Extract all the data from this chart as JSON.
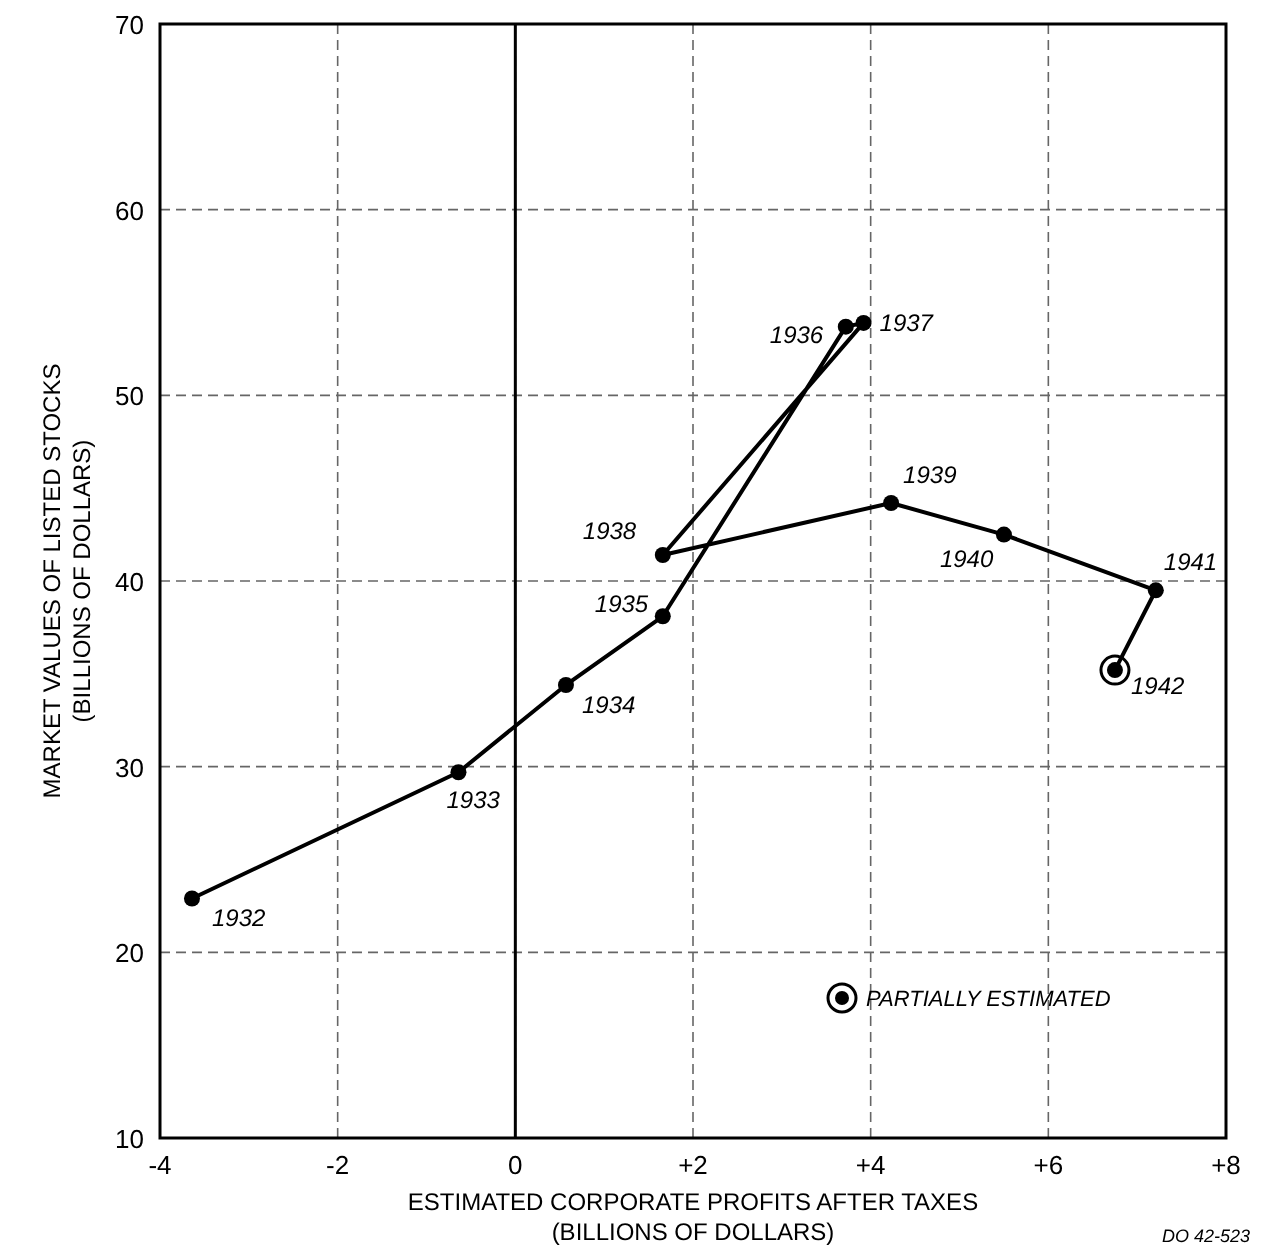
{
  "chart_data": {
    "type": "line",
    "xlabel": "ESTIMATED CORPORATE PROFITS AFTER TAXES\n(BILLIONS OF DOLLARS)",
    "ylabel": "MARKET VALUES OF LISTED STOCKS\n(BILLIONS OF DOLLARS)",
    "xlim": [
      -4,
      8
    ],
    "ylim": [
      10,
      70
    ],
    "xticks": [
      -4,
      -2,
      0,
      {
        "value": 2,
        "label": "+2"
      },
      {
        "value": 4,
        "label": "+4"
      },
      {
        "value": 6,
        "label": "+6"
      },
      {
        "value": 8,
        "label": "+8"
      }
    ],
    "yticks": [
      10,
      20,
      30,
      40,
      50,
      60,
      70
    ],
    "grid": true,
    "legend": "bottom right",
    "marker": "circle",
    "line_style": "solid",
    "ref_lines": [
      {
        "axis": "x",
        "value": 0,
        "color": "#000000"
      }
    ],
    "series": [
      {
        "color": "#000000",
        "x": [
          -3.64,
          -0.64,
          0.57,
          1.66,
          3.72,
          3.92,
          1.66,
          4.23,
          5.5,
          7.21,
          6.75
        ],
        "values": [
          22.9,
          29.7,
          34.4,
          38.1,
          53.7,
          53.9,
          41.4,
          44.2,
          42.5,
          39.5,
          35.2
        ]
      },
      {
        "type": "scatter",
        "name": "PARTIALLY ESTIMATED",
        "color": "#000000",
        "marker": "circle",
        "x": [
          6.75
        ],
        "values": [
          35.2
        ]
      }
    ],
    "annotations": [
      {
        "text": "1932",
        "x": -3.64,
        "y": 22.9
      },
      {
        "text": "1933",
        "x": -0.64,
        "y": 29.7
      },
      {
        "text": "1934",
        "x": 0.57,
        "y": 34.4
      },
      {
        "text": "1935",
        "x": 1.66,
        "y": 38.1
      },
      {
        "text": "1936",
        "x": 3.72,
        "y": 53.7
      },
      {
        "text": "1937",
        "x": 3.92,
        "y": 53.9
      },
      {
        "text": "1938",
        "x": 1.66,
        "y": 41.4
      },
      {
        "text": "1939",
        "x": 4.23,
        "y": 44.2
      },
      {
        "text": "1940",
        "x": 5.5,
        "y": 42.5
      },
      {
        "text": "1941",
        "x": 7.21,
        "y": 39.5
      },
      {
        "text": "1942",
        "x": 6.75,
        "y": 35.2
      },
      "DO 42-523"
    ]
  }
}
